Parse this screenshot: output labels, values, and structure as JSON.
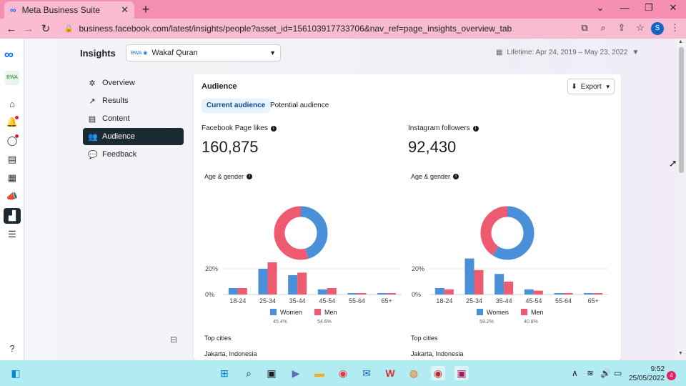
{
  "browser": {
    "tab_title": "Meta Business Suite",
    "url": "business.facebook.com/latest/insights/people?asset_id=156103917733706&nav_ref=page_insights_overview_tab"
  },
  "header": {
    "title": "Insights",
    "page_name": "Wakaf Quran",
    "date_range": "Lifetime: Apr 24, 2019 – May 23, 2022"
  },
  "sidebar": {
    "items": [
      {
        "label": "Overview",
        "icon": "overview-icon",
        "glyph": "✲"
      },
      {
        "label": "Results",
        "icon": "results-icon",
        "glyph": "↗"
      },
      {
        "label": "Content",
        "icon": "content-icon",
        "glyph": "▤"
      },
      {
        "label": "Audience",
        "icon": "audience-icon",
        "glyph": "👥"
      },
      {
        "label": "Feedback",
        "icon": "feedback-icon",
        "glyph": "💬"
      }
    ]
  },
  "card": {
    "title": "Audience",
    "export_label": "Export",
    "tabs": [
      "Current audience",
      "Potential audience"
    ]
  },
  "facebook": {
    "label": "Facebook Page likes",
    "value": "160,875",
    "age_gender_label": "Age & gender",
    "top_cities_label": "Top cities",
    "top_city": "Jakarta, Indonesia"
  },
  "instagram": {
    "label": "Instagram followers",
    "value": "92,430",
    "age_gender_label": "Age & gender",
    "top_cities_label": "Top cities",
    "top_city": "Jakarta, Indonesia"
  },
  "chart_data": [
    {
      "type": "bar",
      "categories": [
        "18-24",
        "25-34",
        "35-44",
        "45-54",
        "55-64",
        "65+"
      ],
      "series": [
        {
          "name": "Women",
          "values": [
            5,
            20,
            15,
            4,
            1,
            1
          ]
        },
        {
          "name": "Men",
          "values": [
            5,
            25,
            17,
            5,
            1,
            1
          ]
        }
      ],
      "y_ticks": [
        "20%",
        "0%"
      ],
      "ylim": [
        0,
        40
      ],
      "legend": [
        {
          "name": "Women",
          "pct": "45.4%"
        },
        {
          "name": "Men",
          "pct": "54.6%"
        }
      ],
      "donut": [
        45.4,
        54.6
      ]
    },
    {
      "type": "bar",
      "categories": [
        "18-24",
        "25-34",
        "35-44",
        "45-54",
        "55-64",
        "65+"
      ],
      "series": [
        {
          "name": "Women",
          "values": [
            5,
            28,
            16,
            4,
            1,
            1
          ]
        },
        {
          "name": "Men",
          "values": [
            4,
            19,
            10,
            3,
            1,
            1
          ]
        }
      ],
      "y_ticks": [
        "20%",
        "0%"
      ],
      "ylim": [
        0,
        40
      ],
      "legend": [
        {
          "name": "Women",
          "pct": "59.2%"
        },
        {
          "name": "Men",
          "pct": "40.8%"
        }
      ],
      "donut": [
        59.2,
        40.8
      ]
    }
  ],
  "colors": {
    "women": "#4a90d9",
    "men": "#ee5a6f",
    "accent": "#1c2b33"
  },
  "taskbar": {
    "time": "9:52",
    "date": "25/05/2022",
    "notifications": "4"
  }
}
